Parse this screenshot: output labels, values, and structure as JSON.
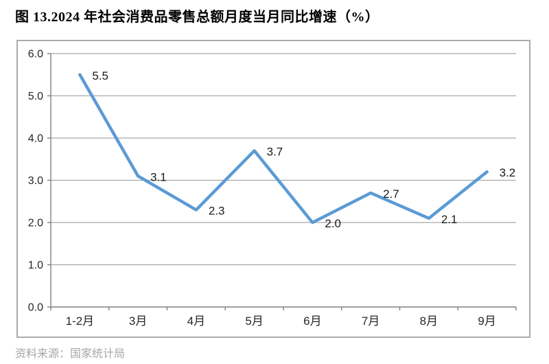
{
  "title": "图 13.2024 年社会消费品零售总额月度当月同比增速（%）",
  "source_note": "资料来源：国家统计局",
  "chart_data": {
    "type": "line",
    "categories": [
      "1-2月",
      "3月",
      "4月",
      "5月",
      "6月",
      "7月",
      "8月",
      "9月"
    ],
    "values": [
      5.5,
      3.1,
      2.3,
      3.7,
      2.0,
      2.7,
      2.1,
      3.2
    ],
    "title": "图 13.2024 年社会消费品零售总额月度当月同比增速（%）",
    "xlabel": "",
    "ylabel": "",
    "ylim": [
      0,
      6
    ],
    "ytick_step": 1,
    "ytick_labels": [
      "0.0",
      "1.0",
      "2.0",
      "3.0",
      "4.0",
      "5.0",
      "6.0"
    ],
    "grid": true,
    "legend_position": "none",
    "data_labels_shown": true,
    "colors": {
      "line": "#5b9bd5",
      "gridline": "#a6a6a6",
      "axis": "#808080",
      "tick_label": "#262626",
      "data_label": "#1a1a1a"
    }
  }
}
